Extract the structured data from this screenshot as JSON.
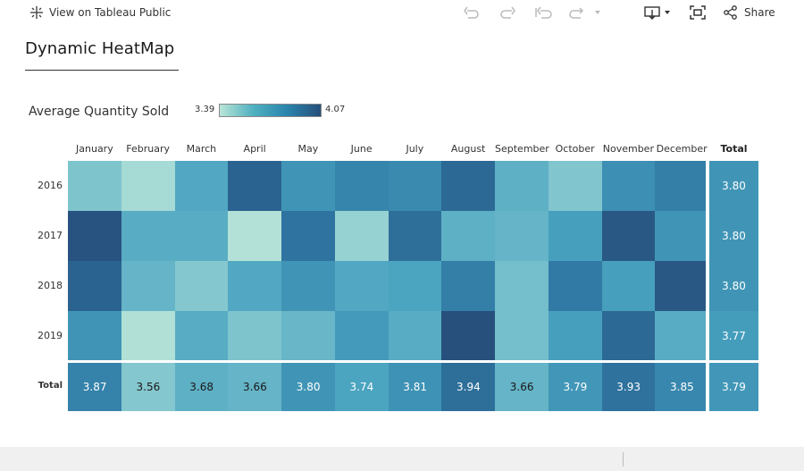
{
  "title": "Dynamic HeatMap",
  "legend": {
    "title": "Average Quantity Sold",
    "min": "3.39",
    "max": "4.07"
  },
  "columns": [
    "January",
    "February",
    "March",
    "April",
    "May",
    "June",
    "July",
    "August",
    "September",
    "October",
    "November",
    "December"
  ],
  "total_label": "Total",
  "chart_data": {
    "type": "heatmap",
    "title": "Dynamic HeatMap",
    "legend_title": "Average Quantity Sold",
    "color_range": [
      3.39,
      4.07
    ],
    "columns": [
      "January",
      "February",
      "March",
      "April",
      "May",
      "June",
      "July",
      "August",
      "September",
      "October",
      "November",
      "December"
    ],
    "rows": [
      {
        "label": "2016",
        "values": [
          3.58,
          3.45,
          3.72,
          3.98,
          3.8,
          3.86,
          3.84,
          3.96,
          3.68,
          3.57,
          3.82,
          3.88
        ],
        "total": "3.80"
      },
      {
        "label": "2017",
        "values": [
          4.04,
          3.7,
          3.7,
          3.41,
          3.92,
          3.5,
          3.94,
          3.68,
          3.66,
          3.76,
          4.02,
          3.8
        ],
        "total": "3.80"
      },
      {
        "label": "2018",
        "values": [
          3.98,
          3.66,
          3.56,
          3.72,
          3.8,
          3.72,
          3.74,
          3.88,
          3.61,
          3.9,
          3.76,
          4.02
        ],
        "total": "3.80"
      },
      {
        "label": "2019",
        "values": [
          3.8,
          3.42,
          3.7,
          3.58,
          3.65,
          3.78,
          3.7,
          4.05,
          3.61,
          3.76,
          3.96,
          3.7
        ],
        "total": "3.77"
      }
    ],
    "totals": {
      "label": "Total",
      "values": [
        "3.87",
        "3.56",
        "3.68",
        "3.66",
        "3.80",
        "3.74",
        "3.81",
        "3.94",
        "3.66",
        "3.79",
        "3.93",
        "3.85"
      ],
      "grand": "3.79"
    }
  },
  "toolbar": {
    "view_on": "View on Tableau Public",
    "share": "Share"
  }
}
